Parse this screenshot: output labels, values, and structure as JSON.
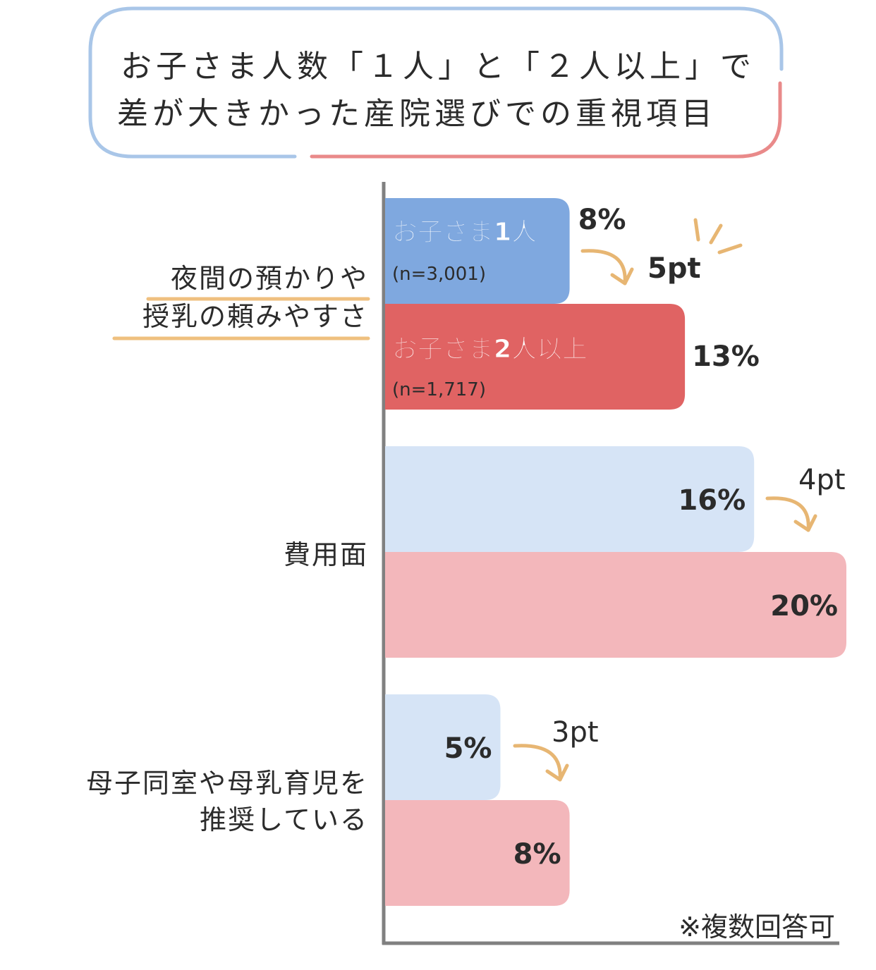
{
  "title": {
    "line1": "お子さま人数「１人」と「２人以上」で",
    "line2": "差が大きかった産院選びでの重視項目"
  },
  "colors": {
    "one_child": "#7fa8df",
    "one_child_light": "#d6e4f6",
    "two_plus": "#e06363",
    "two_plus_light": "#f3b7bb",
    "axis": "#808080",
    "underline": "#efc07f",
    "arrow": "#e7b673",
    "frame_blue": "#a9c6e8",
    "frame_red": "#e98a8a"
  },
  "note": "※複数回答可",
  "chart_data": {
    "type": "bar",
    "orientation": "horizontal",
    "xlim": [
      0,
      20
    ],
    "categories": [
      [
        "夜間の預かりや",
        "授乳の頼みやすさ"
      ],
      [
        "費用面"
      ],
      [
        "母子同室や母乳育児を",
        "推奨している"
      ]
    ],
    "series": [
      {
        "name": "お子さま1人",
        "n_label": "(n=3,001)",
        "values": [
          8,
          16,
          5
        ]
      },
      {
        "name": "お子さま2人以上",
        "n_label": "(n=1,717)",
        "values": [
          13,
          20,
          8
        ]
      }
    ],
    "value_labels": [
      [
        "8%",
        "16%",
        "5%"
      ],
      [
        "13%",
        "20%",
        "8%"
      ]
    ],
    "differences": [
      "5pt",
      "4pt",
      "3pt"
    ]
  }
}
